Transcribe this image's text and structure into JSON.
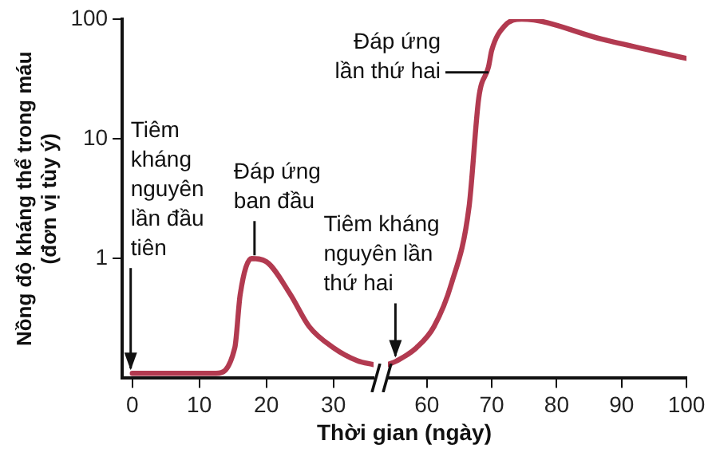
{
  "chart_data": [
    {
      "type": "line",
      "ylabel": "Nồng độ kháng thể trong máu (đơn vị tùy ý)",
      "series": [
        {
          "color": "#b23a50",
          "x": [
            0,
            12.5,
            15.3,
            16.1,
            17.8,
            20,
            23.6,
            26.4,
            30,
            33.6,
            36
          ],
          "values": [
            0.11,
            0.11,
            0.18,
            0.5,
            1,
            0.94,
            0.5,
            0.27,
            0.18,
            0.14,
            0.13
          ]
        }
      ],
      "xlim": [
        -1.5,
        36
      ],
      "xticks": [
        0,
        10,
        20,
        30
      ],
      "ylim": [
        0.1,
        100
      ],
      "yticks": [
        1,
        10,
        100
      ],
      "log": "y",
      "marker": "none",
      "annotations": [
        {
          "text": "Tiêm kháng nguyên lần đầu tiên",
          "x": 0,
          "y": 0.11
        },
        {
          "text": "Đáp ứng ban đầu",
          "x": 18,
          "y": 1
        }
      ]
    },
    {
      "type": "line",
      "xlabel": "Thời gian (ngày)",
      "series": [
        {
          "color": "#b23a50",
          "x": [
            54,
            55.4,
            58.4,
            61.1,
            63.8,
            66.5,
            68,
            69.5,
            70,
            72,
            74.6,
            87,
            100
          ],
          "values": [
            0.13,
            0.14,
            0.18,
            0.27,
            0.62,
            2.7,
            22,
            40,
            55,
            88,
            100,
            68,
            47
          ]
        }
      ],
      "xlim": [
        54,
        100
      ],
      "xticks": [
        60,
        70,
        80,
        90,
        100
      ],
      "ylim": [
        0.1,
        100
      ],
      "log": "y",
      "marker": "none",
      "tick_labels": "x",
      "annotations": [
        {
          "text": "Tiêm kháng nguyên lần thứ hai",
          "x": 55.4,
          "y": 0.14
        },
        {
          "text": "Đáp ứng lần thứ hai",
          "x": 69.5,
          "y": 40
        }
      ]
    }
  ]
}
